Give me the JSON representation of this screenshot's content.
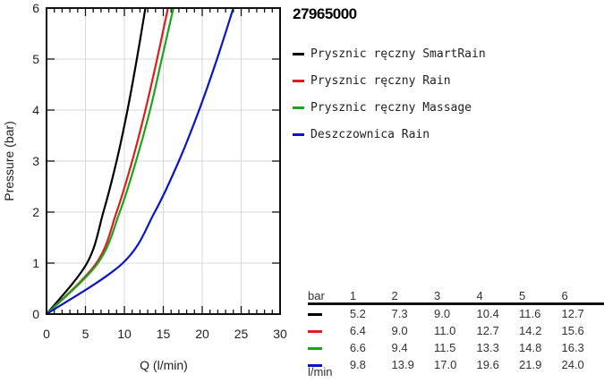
{
  "chart_data": {
    "type": "line",
    "title": "27965000",
    "xlabel": "Q (l/min)",
    "ylabel": "Pressure (bar)",
    "xlim": [
      0,
      30
    ],
    "ylim": [
      0,
      6
    ],
    "x_ticks": [
      "0",
      "5",
      "10",
      "15",
      "20",
      "25",
      "30"
    ],
    "y_ticks": [
      "0",
      "1",
      "2",
      "3",
      "4",
      "5",
      "6"
    ],
    "grid": true,
    "legend_position": "right",
    "pressures": [
      1,
      2,
      3,
      4,
      5,
      6
    ],
    "series": [
      {
        "name": "Prysznic ręczny SmartRain",
        "color": "#000000",
        "q": [
          5.2,
          7.3,
          9.0,
          10.4,
          11.6,
          12.7
        ]
      },
      {
        "name": "Prysznic ręczny Rain",
        "color": "#e01b1b",
        "q": [
          6.4,
          9.0,
          11.0,
          12.7,
          14.2,
          15.6
        ]
      },
      {
        "name": "Prysznic ręczny Massage",
        "color": "#1aa51a",
        "q": [
          6.6,
          9.4,
          11.5,
          13.3,
          14.8,
          16.3
        ]
      },
      {
        "name": "Deszczownica Rain",
        "color": "#0a14c8",
        "q": [
          9.8,
          13.9,
          17.0,
          19.6,
          21.9,
          24.0
        ]
      }
    ]
  },
  "table": {
    "header_label": "bar",
    "unit_label": "l/min",
    "columns": [
      "1",
      "2",
      "3",
      "4",
      "5",
      "6"
    ],
    "rows": [
      {
        "color": "#000000",
        "values": [
          "5.2",
          "7.3",
          "9.0",
          "10.4",
          "11.6",
          "12.7"
        ]
      },
      {
        "color": "#e01b1b",
        "values": [
          "6.4",
          "9.0",
          "11.0",
          "12.7",
          "14.2",
          "15.6"
        ]
      },
      {
        "color": "#1aa51a",
        "values": [
          "6.6",
          "9.4",
          "11.5",
          "13.3",
          "14.8",
          "16.3"
        ]
      },
      {
        "color": "#0a14c8",
        "values": [
          "9.8",
          "13.9",
          "17.0",
          "19.6",
          "21.9",
          "24.0"
        ]
      }
    ]
  }
}
